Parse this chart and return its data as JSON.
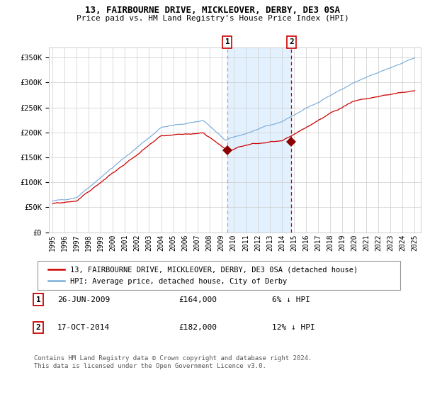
{
  "title_line1": "13, FAIRBOURNE DRIVE, MICKLEOVER, DERBY, DE3 0SA",
  "title_line2": "Price paid vs. HM Land Registry's House Price Index (HPI)",
  "legend_line1": "13, FAIRBOURNE DRIVE, MICKLEOVER, DERBY, DE3 0SA (detached house)",
  "legend_line2": "HPI: Average price, detached house, City of Derby",
  "footnote": "Contains HM Land Registry data © Crown copyright and database right 2024.\nThis data is licensed under the Open Government Licence v3.0.",
  "sale1_date": "26-JUN-2009",
  "sale1_price": 164000,
  "sale1_hpi": "6% ↓ HPI",
  "sale2_date": "17-OCT-2014",
  "sale2_price": 182000,
  "sale2_hpi": "12% ↓ HPI",
  "red_line_color": "#cc0000",
  "blue_line_color": "#7aaddb",
  "marker_color": "#8b0000",
  "shade_color": "#ddeeff",
  "vline1_color": "#aaaaaa",
  "vline2_color": "#cc0000",
  "background_color": "#ffffff",
  "grid_color": "#cccccc",
  "ylim": [
    0,
    370000
  ],
  "yticks": [
    0,
    50000,
    100000,
    150000,
    200000,
    250000,
    300000,
    350000
  ],
  "ytick_labels": [
    "£0",
    "£50K",
    "£100K",
    "£150K",
    "£200K",
    "£250K",
    "£300K",
    "£350K"
  ],
  "sale1_year": 2009.48,
  "sale2_year": 2014.79,
  "shade_start": 2009.48,
  "shade_end": 2014.79,
  "xmin": 1994.7,
  "xmax": 2025.5
}
